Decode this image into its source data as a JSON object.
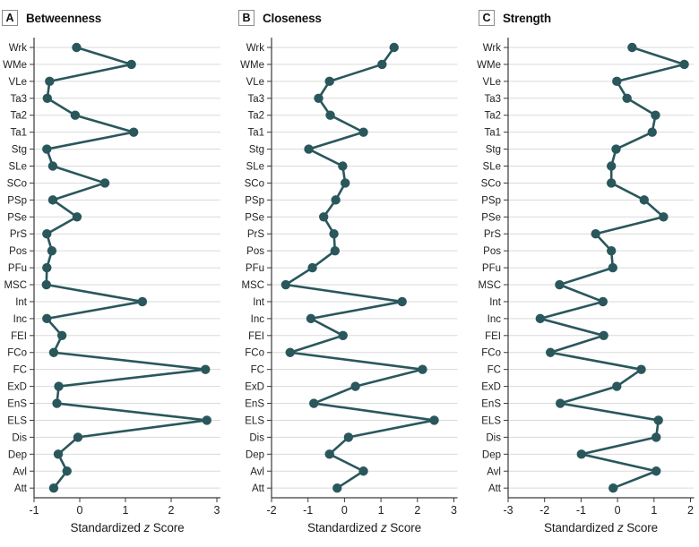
{
  "figure": {
    "xlabel_pre": "Standardized",
    "xlabel_italic": "z",
    "xlabel_post": "Score"
  },
  "panels": [
    {
      "letter": "A",
      "title": "Betweenness"
    },
    {
      "letter": "B",
      "title": "Closeness"
    },
    {
      "letter": "C",
      "title": "Strength"
    }
  ],
  "colors": {
    "line": "#2a575c",
    "grid": "#dadada",
    "axis": "#3a3a3a",
    "text": "#1f1f1f"
  },
  "chart_data": [
    {
      "type": "line",
      "title": "Betweenness",
      "xlabel": "Standardized z Score",
      "orientation": "horizontal",
      "grid": "horizontal",
      "legend_position": "none",
      "categories": [
        "Wrk",
        "WMe",
        "VLe",
        "Ta3",
        "Ta2",
        "Ta1",
        "Stg",
        "SLe",
        "SCo",
        "PSp",
        "PSe",
        "PrS",
        "Pos",
        "PFu",
        "MSC",
        "Int",
        "Inc",
        "FEI",
        "FCo",
        "FC",
        "ExD",
        "EnS",
        "ELS",
        "Dis",
        "Dep",
        "Avl",
        "Att"
      ],
      "values": [
        -0.07,
        1.13,
        -0.66,
        -0.71,
        -0.1,
        1.18,
        -0.72,
        -0.59,
        0.55,
        -0.59,
        -0.06,
        -0.72,
        -0.61,
        -0.72,
        -0.73,
        1.37,
        -0.72,
        -0.39,
        -0.57,
        2.75,
        -0.46,
        -0.5,
        2.78,
        -0.04,
        -0.47,
        -0.28,
        -0.57
      ],
      "xlim": [
        -1,
        3
      ],
      "xticks": [
        -1,
        0,
        1,
        2,
        3
      ]
    },
    {
      "type": "line",
      "title": "Closeness",
      "xlabel": "Standardized z Score",
      "orientation": "horizontal",
      "grid": "horizontal",
      "legend_position": "none",
      "categories": [
        "Wrk",
        "WMe",
        "VLe",
        "Ta3",
        "Ta2",
        "Ta1",
        "Stg",
        "SLe",
        "SCo",
        "PSp",
        "PSe",
        "PrS",
        "Pos",
        "PFu",
        "MSC",
        "Int",
        "Inc",
        "FEI",
        "FCo",
        "FC",
        "ExD",
        "EnS",
        "ELS",
        "Dis",
        "Dep",
        "Avl",
        "Att"
      ],
      "values": [
        1.36,
        1.03,
        -0.41,
        -0.71,
        -0.39,
        0.52,
        -0.98,
        -0.05,
        0.02,
        -0.24,
        -0.57,
        -0.29,
        -0.26,
        -0.88,
        -1.61,
        1.58,
        -0.92,
        -0.04,
        -1.49,
        2.14,
        0.3,
        -0.84,
        2.46,
        0.11,
        -0.41,
        0.52,
        -0.2
      ],
      "xlim": [
        -2,
        3
      ],
      "xticks": [
        -2,
        -1,
        0,
        1,
        2,
        3
      ]
    },
    {
      "type": "line",
      "title": "Strength",
      "xlabel": "Standardized z Score",
      "orientation": "horizontal",
      "grid": "horizontal",
      "legend_position": "none",
      "categories": [
        "Wrk",
        "WMe",
        "VLe",
        "Ta3",
        "Ta2",
        "Ta1",
        "Stg",
        "SLe",
        "SCo",
        "PSp",
        "PSe",
        "PrS",
        "Pos",
        "PFu",
        "MSC",
        "Int",
        "Inc",
        "FEI",
        "FCo",
        "FC",
        "ExD",
        "EnS",
        "ELS",
        "Dis",
        "Dep",
        "Avl",
        "Att"
      ],
      "values": [
        0.4,
        1.83,
        -0.02,
        0.26,
        1.04,
        0.95,
        -0.04,
        -0.17,
        -0.17,
        0.73,
        1.26,
        -0.6,
        -0.17,
        -0.13,
        -1.59,
        -0.4,
        -2.12,
        -0.38,
        -1.84,
        0.65,
        -0.02,
        -1.57,
        1.12,
        1.06,
        -0.99,
        1.06,
        -0.12
      ],
      "xlim": [
        -3,
        2
      ],
      "xticks": [
        -3,
        -2,
        -1,
        0,
        1,
        2
      ]
    }
  ]
}
